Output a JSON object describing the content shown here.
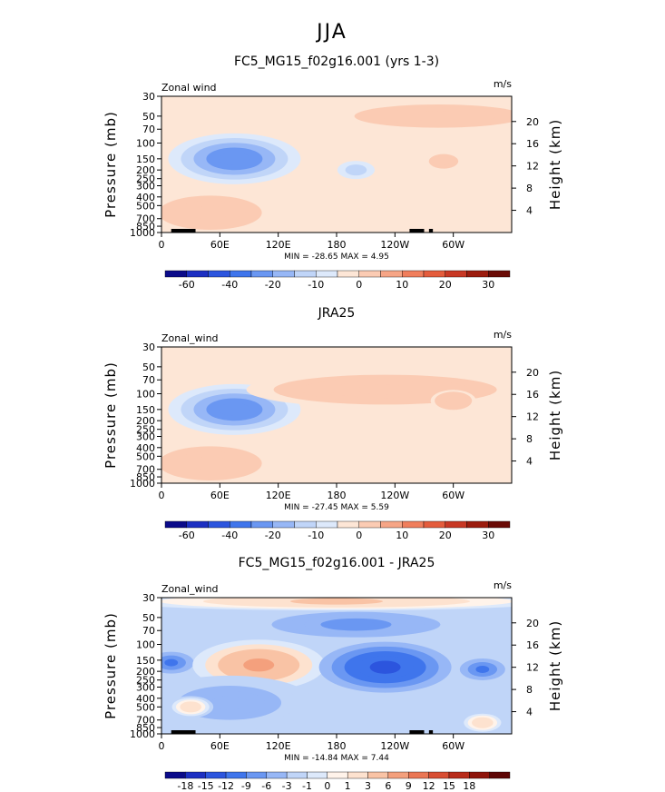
{
  "figure_title": "JJA",
  "chart_data": [
    {
      "type": "heatmap",
      "title": "FC5_MG15_f02g16.001 (yrs 1-3)",
      "left_label": "Zonal wind",
      "units": "m/s",
      "ylabel": "Pressure (mb)",
      "ylabel_right": "Height (km)",
      "x_ticks": [
        "0",
        "60E",
        "120E",
        "180",
        "120W",
        "60W"
      ],
      "x_tick_values": [
        0,
        60,
        120,
        180,
        240,
        300
      ],
      "xlim": [
        0,
        360
      ],
      "y_ticks": [
        "30",
        "50",
        "70",
        "100",
        "150",
        "200",
        "250",
        "300",
        "400",
        "500",
        "700",
        "850",
        "1000"
      ],
      "y_tick_values": [
        30,
        50,
        70,
        100,
        150,
        200,
        250,
        300,
        400,
        500,
        700,
        850,
        1000
      ],
      "ylim": [
        1000,
        30
      ],
      "y_scale": "log",
      "height_ticks": [
        "20",
        "16",
        "12",
        "8",
        "4"
      ],
      "height_tick_values": [
        20,
        16,
        12,
        8,
        4
      ],
      "min": -28.65,
      "max": 4.95,
      "stats_text": "MIN = -28.65   MAX =   4.95",
      "contour_levels": [
        -70,
        -60,
        -50,
        -40,
        -30,
        -20,
        -15,
        -10,
        -5,
        0,
        5,
        10,
        15,
        20,
        25,
        30,
        35
      ],
      "colorbar_labels": [
        "-60",
        "-40",
        "-20",
        "-10",
        "0",
        "10",
        "20",
        "30"
      ],
      "colorbar_label_values": [
        -60,
        -40,
        -20,
        -10,
        0,
        10,
        20,
        30
      ],
      "features": [
        {
          "lon": 75,
          "p": 150,
          "value": -28,
          "shape": "core"
        },
        {
          "lon": 285,
          "p": 50,
          "value": 3,
          "shape": "stratosphere"
        },
        {
          "lon": 290,
          "p": 160,
          "value": 4,
          "shape": "small"
        },
        {
          "lon": 200,
          "p": 200,
          "value": -12,
          "shape": "small"
        },
        {
          "lon": 50,
          "p": 600,
          "value": 4,
          "shape": "lower"
        }
      ]
    },
    {
      "type": "heatmap",
      "title": "JRA25",
      "left_label": "Zonal_wind",
      "units": "m/s",
      "ylabel": "Pressure (mb)",
      "ylabel_right": "Height (km)",
      "x_ticks": [
        "0",
        "60E",
        "120E",
        "180",
        "120W",
        "60W"
      ],
      "x_tick_values": [
        0,
        60,
        120,
        180,
        240,
        300
      ],
      "xlim": [
        0,
        360
      ],
      "y_ticks": [
        "30",
        "50",
        "70",
        "100",
        "150",
        "200",
        "250",
        "300",
        "400",
        "500",
        "700",
        "850",
        "1000"
      ],
      "y_tick_values": [
        30,
        50,
        70,
        100,
        150,
        200,
        250,
        300,
        400,
        500,
        700,
        850,
        1000
      ],
      "ylim": [
        1000,
        30
      ],
      "y_scale": "log",
      "height_ticks": [
        "20",
        "16",
        "12",
        "8",
        "4"
      ],
      "height_tick_values": [
        20,
        16,
        12,
        8,
        4
      ],
      "min": -27.45,
      "max": 5.59,
      "stats_text": "MIN = -27.45   MAX =   5.59",
      "contour_levels": [
        -70,
        -60,
        -50,
        -40,
        -30,
        -20,
        -15,
        -10,
        -5,
        0,
        5,
        10,
        15,
        20,
        25,
        30,
        35
      ],
      "colorbar_labels": [
        "-60",
        "-40",
        "-20",
        "-10",
        "0",
        "10",
        "20",
        "30"
      ],
      "colorbar_label_values": [
        -60,
        -40,
        -20,
        -10,
        0,
        10,
        20,
        30
      ],
      "features": [
        {
          "lon": 75,
          "p": 150,
          "value": -27,
          "shape": "core"
        },
        {
          "lon": 230,
          "p": 90,
          "value": 5,
          "shape": "stratosphere"
        },
        {
          "lon": 300,
          "p": 120,
          "value": 5,
          "shape": "small"
        },
        {
          "lon": 80,
          "p": 700,
          "value": 5,
          "shape": "small"
        },
        {
          "lon": 50,
          "p": 600,
          "value": 3,
          "shape": "lower"
        }
      ]
    },
    {
      "type": "heatmap",
      "title": "FC5_MG15_f02g16.001 - JRA25",
      "left_label": "Zonal_wind",
      "units": "m/s",
      "ylabel": "Pressure (mb)",
      "ylabel_right": "Height (km)",
      "x_ticks": [
        "0",
        "60E",
        "120E",
        "180",
        "120W",
        "60W"
      ],
      "x_tick_values": [
        0,
        60,
        120,
        180,
        240,
        300
      ],
      "xlim": [
        0,
        360
      ],
      "y_ticks": [
        "30",
        "50",
        "70",
        "100",
        "150",
        "200",
        "250",
        "300",
        "400",
        "500",
        "700",
        "850",
        "1000"
      ],
      "y_tick_values": [
        30,
        50,
        70,
        100,
        150,
        200,
        250,
        300,
        400,
        500,
        700,
        850,
        1000
      ],
      "ylim": [
        1000,
        30
      ],
      "y_scale": "log",
      "height_ticks": [
        "20",
        "16",
        "12",
        "8",
        "4"
      ],
      "height_tick_values": [
        20,
        16,
        12,
        8,
        4
      ],
      "min": -14.84,
      "max": 7.44,
      "stats_text": "MIN = -14.84   MAX =   7.44",
      "contour_levels": [
        -21,
        -18,
        -15,
        -12,
        -9,
        -6,
        -3,
        -1,
        0,
        1,
        3,
        6,
        9,
        12,
        15,
        18,
        21
      ],
      "colorbar_labels": [
        "-18",
        "-15",
        "-12",
        "-9",
        "-6",
        "-3",
        "-1",
        "0",
        "1",
        "3",
        "6",
        "9",
        "12",
        "15",
        "18"
      ],
      "colorbar_label_values": [
        -18,
        -15,
        -12,
        -9,
        -6,
        -3,
        -1,
        0,
        1,
        3,
        6,
        9,
        12,
        15,
        18
      ],
      "features": [
        {
          "lon": 10,
          "p": 160,
          "value": -10,
          "shape": "small"
        },
        {
          "lon": 100,
          "p": 170,
          "value": 7,
          "shape": "core"
        },
        {
          "lon": 230,
          "p": 180,
          "value": -14,
          "shape": "core"
        },
        {
          "lon": 330,
          "p": 190,
          "value": -10,
          "shape": "small"
        },
        {
          "lon": 200,
          "p": 60,
          "value": -7,
          "shape": "band"
        },
        {
          "lon": 180,
          "p": 33,
          "value": 4,
          "shape": "top"
        },
        {
          "lon": 70,
          "p": 450,
          "value": -4,
          "shape": "lower"
        },
        {
          "lon": 30,
          "p": 500,
          "value": 3,
          "shape": "small"
        },
        {
          "lon": 330,
          "p": 750,
          "value": 3,
          "shape": "small"
        }
      ]
    }
  ],
  "colors": {
    "colorbar_wind": [
      "#0b0b8a",
      "#1c2fc2",
      "#2c55de",
      "#3f75ec",
      "#6a97f2",
      "#97b7f6",
      "#c0d5f8",
      "#dde9fb",
      "#fde6d6",
      "#fbcbb3",
      "#f6a586",
      "#f07e5c",
      "#e45c3c",
      "#c83824",
      "#9c1c0e",
      "#6a0b06"
    ],
    "colorbar_diff": [
      "#0b0b8a",
      "#1c2fc2",
      "#2c55de",
      "#3f75ec",
      "#6a97f2",
      "#97b7f6",
      "#c0d5f8",
      "#dde9fb",
      "#fff3ea",
      "#fde2cf",
      "#f9c3a5",
      "#f4a07d",
      "#ea7654",
      "#d84e33",
      "#b82b1a",
      "#8e140a",
      "#5e0605"
    ],
    "background_panel": "#e4efff",
    "topography": "#000000"
  }
}
